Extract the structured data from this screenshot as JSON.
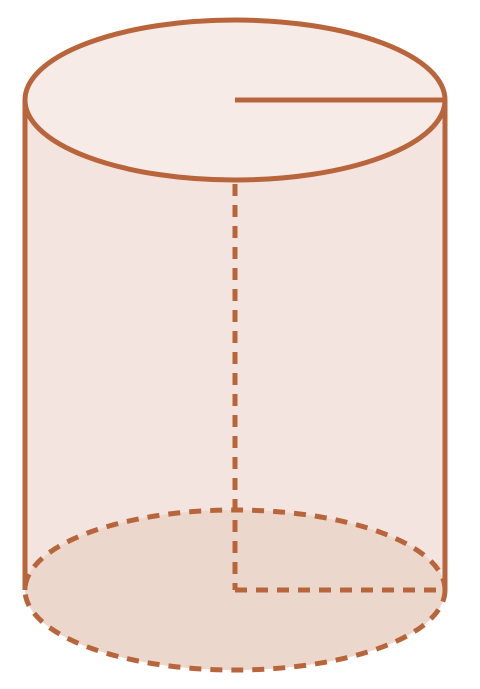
{
  "figure": {
    "shape": "cylinder",
    "colors": {
      "outline": "#b9653b",
      "body_fill": "#f4e4df",
      "top_fill": "#f7ebe8",
      "bottom_fill": "#ecd7cd"
    },
    "parts": [
      "top-ellipse",
      "bottom-ellipse",
      "left-side",
      "right-side",
      "top-radius",
      "hidden-axis",
      "hidden-base-radius"
    ]
  }
}
